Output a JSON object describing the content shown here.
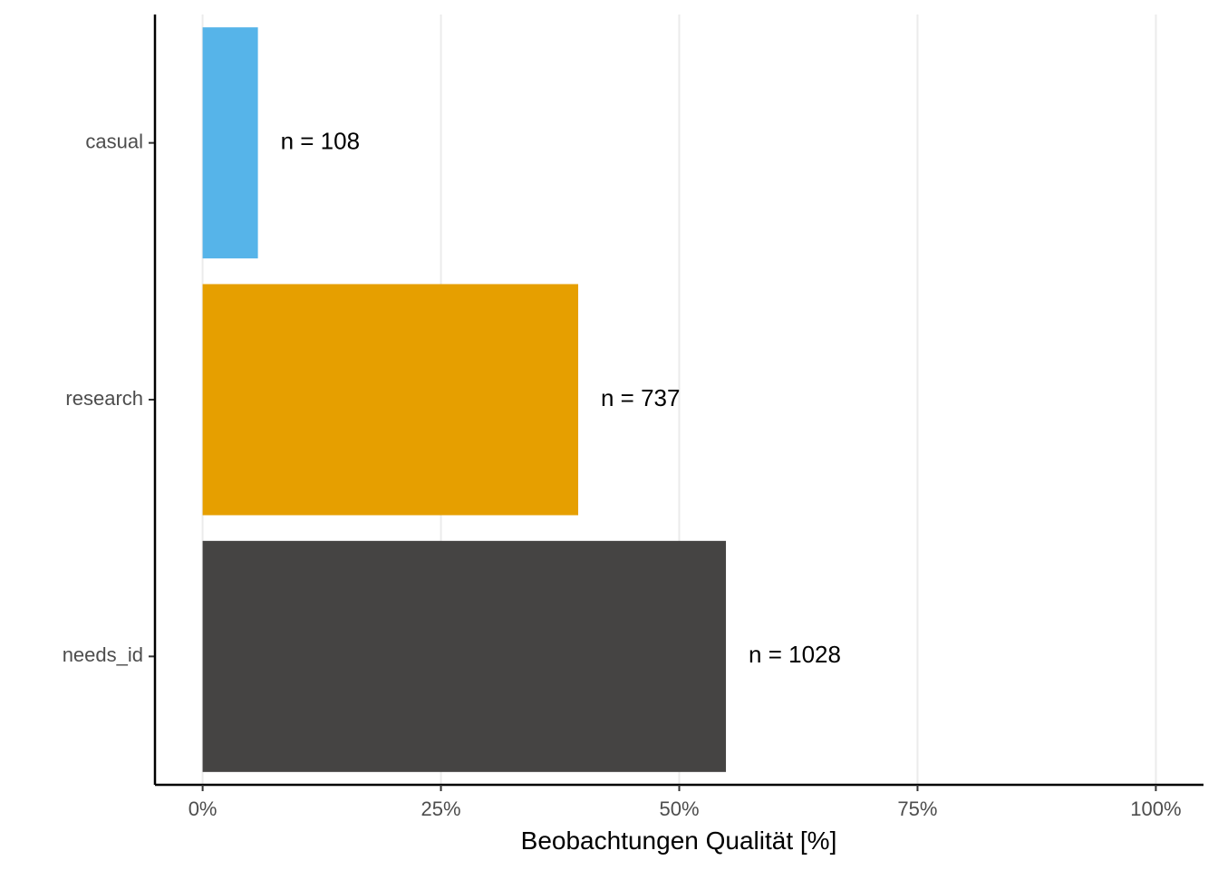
{
  "chart_data": {
    "type": "bar",
    "orientation": "horizontal",
    "categories": [
      "casual",
      "research",
      "needs_id"
    ],
    "values": [
      5.8,
      39.4,
      54.9
    ],
    "data_labels": [
      "n = 108",
      "n = 737",
      "n = 1028"
    ],
    "colors": [
      "#56B4E9",
      "#E69F00",
      "#454443"
    ],
    "xlabel": "Beobachtungen Qualität [%]",
    "ylabel": "",
    "xlim": [
      -5,
      105
    ],
    "x_ticks": [
      0,
      25,
      50,
      75,
      100
    ],
    "x_tick_labels": [
      "0%",
      "25%",
      "50%",
      "75%",
      "100%"
    ],
    "grid": "vertical-major"
  }
}
